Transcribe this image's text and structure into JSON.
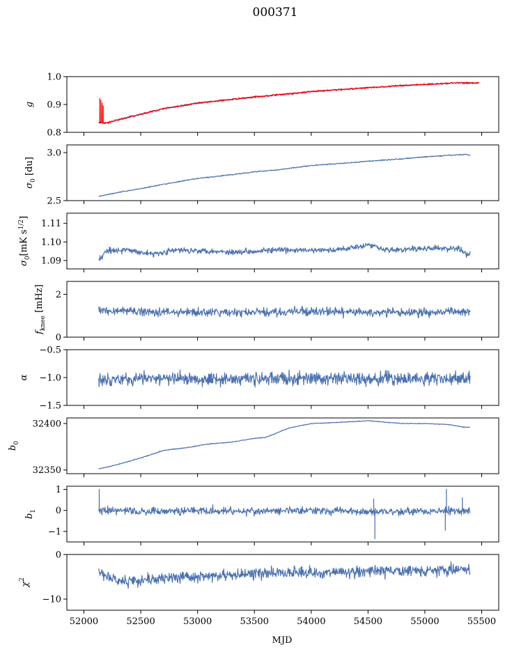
{
  "figure": {
    "title": "000371"
  },
  "colors": {
    "primary": "#4c72b0",
    "overlay": "#ff0000"
  },
  "chart_data": [
    {
      "type": "line",
      "ylabel": "g",
      "ylim": [
        0.8,
        1.0
      ],
      "xlim": [
        51850,
        55650
      ],
      "xticks": [
        52000,
        52500,
        53000,
        53500,
        54000,
        54500,
        55000,
        55500
      ],
      "yticks": [
        0.8,
        0.9,
        1.0
      ],
      "ytick_labels": [
        "0.8",
        "0.9",
        "1.0"
      ],
      "series": [
        {
          "color": "#4c72b0",
          "style": "trend",
          "x": [
            52130,
            52200,
            52300,
            52500,
            52700,
            53000,
            53300,
            53500,
            53800,
            54000,
            54300,
            54500,
            54800,
            55000,
            55200,
            55300,
            55400,
            55480
          ],
          "y": [
            0.835,
            0.833,
            0.845,
            0.865,
            0.885,
            0.905,
            0.918,
            0.927,
            0.938,
            0.946,
            0.955,
            0.96,
            0.968,
            0.972,
            0.976,
            0.978,
            0.977,
            0.978
          ],
          "noise": 0.002
        },
        {
          "color": "#ff0000",
          "style": "trend",
          "x": [
            52130,
            52200,
            52300,
            52500,
            52700,
            53000,
            53300,
            53500,
            53800,
            54000,
            54300,
            54500,
            54800,
            55000,
            55200,
            55300,
            55400,
            55480
          ],
          "y": [
            0.835,
            0.833,
            0.845,
            0.865,
            0.885,
            0.905,
            0.918,
            0.927,
            0.938,
            0.946,
            0.955,
            0.96,
            0.968,
            0.972,
            0.976,
            0.978,
            0.977,
            0.978
          ],
          "noise": 0.002,
          "spikes": [
            [
              52140,
              0.922
            ],
            [
              52150,
              0.915
            ],
            [
              52160,
              0.905
            ],
            [
              52170,
              0.895
            ]
          ]
        }
      ]
    },
    {
      "type": "line",
      "ylabel": "σ0 [du]",
      "ylim": [
        2.5,
        3.08
      ],
      "xlim": [
        51850,
        55650
      ],
      "xticks": [
        52000,
        52500,
        53000,
        53500,
        54000,
        54500,
        55000,
        55500
      ],
      "yticks": [
        2.5,
        3.0
      ],
      "ytick_labels": [
        "2.5",
        "3.0"
      ],
      "series": [
        {
          "color": "#4c72b0",
          "style": "trend",
          "x": [
            52130,
            52300,
            52500,
            52700,
            53000,
            53300,
            53500,
            53700,
            54000,
            54300,
            54500,
            54800,
            55000,
            55200,
            55350,
            55400
          ],
          "y": [
            2.545,
            2.585,
            2.625,
            2.67,
            2.73,
            2.77,
            2.8,
            2.82,
            2.865,
            2.89,
            2.91,
            2.935,
            2.955,
            2.97,
            2.98,
            2.975
          ],
          "noise": 0.004
        }
      ]
    },
    {
      "type": "line",
      "ylabel": "σ0[mK s1/2]",
      "ylim": [
        1.0855,
        1.1155
      ],
      "xlim": [
        51850,
        55650
      ],
      "xticks": [
        52000,
        52500,
        53000,
        53500,
        54000,
        54500,
        55000,
        55500
      ],
      "yticks": [
        1.09,
        1.1,
        1.11
      ],
      "ytick_labels": [
        "1.09",
        "1.10",
        "1.11"
      ],
      "series": [
        {
          "color": "#4c72b0",
          "style": "noise",
          "x": [
            52130,
            52200,
            52400,
            52600,
            52800,
            53000,
            53300,
            53600,
            53900,
            54200,
            54500,
            54700,
            55000,
            55300,
            55380,
            55400
          ],
          "y": [
            1.09,
            1.0955,
            1.0955,
            1.0935,
            1.0955,
            1.0955,
            1.0945,
            1.0955,
            1.0955,
            1.0955,
            1.0985,
            1.0955,
            1.0965,
            1.0965,
            1.0925,
            1.0945
          ],
          "noise": 0.0011
        }
      ]
    },
    {
      "type": "line",
      "ylabel": "fknee [mHz]",
      "ylim": [
        0,
        2.6
      ],
      "xlim": [
        51850,
        55650
      ],
      "xticks": [
        52000,
        52500,
        53000,
        53500,
        54000,
        54500,
        55000,
        55500
      ],
      "yticks": [
        0,
        2
      ],
      "ytick_labels": [
        "0",
        "2"
      ],
      "series": [
        {
          "color": "#4c72b0",
          "style": "noise",
          "x": [
            52130,
            52500,
            53000,
            53500,
            54000,
            54500,
            55000,
            55400
          ],
          "y": [
            1.25,
            1.2,
            1.15,
            1.15,
            1.2,
            1.15,
            1.15,
            1.2
          ],
          "noise": 0.14
        }
      ]
    },
    {
      "type": "line",
      "ylabel": "α",
      "ylim": [
        -1.5,
        -0.5
      ],
      "xlim": [
        51850,
        55650
      ],
      "xticks": [
        52000,
        52500,
        53000,
        53500,
        54000,
        54500,
        55000,
        55500
      ],
      "yticks": [
        -1.5,
        -1.0,
        -0.5
      ],
      "ytick_labels": [
        "−1.5",
        "−1.0",
        "−0.5"
      ],
      "series": [
        {
          "color": "#4c72b0",
          "style": "noise",
          "x": [
            52130,
            52500,
            53000,
            53500,
            54000,
            54500,
            55000,
            55400
          ],
          "y": [
            -1.02,
            -1.02,
            -1.02,
            -1.02,
            -1.02,
            -1.02,
            -1.02,
            -1.02
          ],
          "noise": 0.085
        }
      ]
    },
    {
      "type": "line",
      "ylabel": "b0",
      "ylim": [
        32346,
        32406
      ],
      "xlim": [
        51850,
        55650
      ],
      "xticks": [
        52000,
        52500,
        53000,
        53500,
        54000,
        54500,
        55000,
        55500
      ],
      "yticks": [
        32350,
        32400
      ],
      "ytick_labels": [
        "32350",
        "32400"
      ],
      "series": [
        {
          "color": "#4c72b0",
          "style": "trend",
          "x": [
            52130,
            52300,
            52500,
            52700,
            52900,
            53100,
            53300,
            53500,
            53600,
            53800,
            54000,
            54200,
            54500,
            54800,
            55000,
            55200,
            55350,
            55400
          ],
          "y": [
            32351,
            32356,
            32363,
            32371,
            32374,
            32378,
            32380,
            32384,
            32385,
            32395,
            32400,
            32401,
            32403,
            32400,
            32400,
            32399,
            32396,
            32396
          ],
          "noise": 0.3
        }
      ]
    },
    {
      "type": "line",
      "ylabel": "b1",
      "ylim": [
        -1.5,
        1.15
      ],
      "xlim": [
        51850,
        55650
      ],
      "xticks": [
        52000,
        52500,
        53000,
        53500,
        54000,
        54500,
        55000,
        55500
      ],
      "yticks": [
        -1,
        0,
        1
      ],
      "ytick_labels": [
        "−1",
        "0",
        "1"
      ],
      "series": [
        {
          "color": "#4c72b0",
          "style": "noise",
          "x": [
            52130,
            52500,
            53000,
            53500,
            54000,
            54500,
            55000,
            55400
          ],
          "y": [
            0,
            -0.05,
            0,
            -0.05,
            0,
            -0.05,
            -0.05,
            0
          ],
          "noise": 0.13,
          "spikes": [
            [
              52135,
              1.0
            ],
            [
              54560,
              -1.35
            ],
            [
              54550,
              0.55
            ],
            [
              55190,
              1.0
            ],
            [
              55180,
              -0.95
            ],
            [
              55330,
              0.6
            ]
          ]
        }
      ]
    },
    {
      "type": "line",
      "ylabel": "χ2",
      "ylim": [
        -12.5,
        0
      ],
      "xlim": [
        51850,
        55650
      ],
      "xticks": [
        52000,
        52500,
        53000,
        53500,
        54000,
        54500,
        55000,
        55500
      ],
      "xtick_labels": [
        "52000",
        "52500",
        "53000",
        "53500",
        "54000",
        "54500",
        "55000",
        "55500"
      ],
      "yticks": [
        -10,
        0
      ],
      "ytick_labels": [
        "−10",
        "0"
      ],
      "xlabel": "MJD",
      "series": [
        {
          "color": "#4c72b0",
          "style": "noise",
          "x": [
            52130,
            52300,
            52600,
            53000,
            53400,
            53800,
            54200,
            54600,
            55000,
            55400
          ],
          "y": [
            -4,
            -6,
            -5.5,
            -5,
            -4.5,
            -4,
            -4,
            -3.8,
            -3.5,
            -3.5
          ],
          "noise": 0.9
        }
      ]
    }
  ]
}
